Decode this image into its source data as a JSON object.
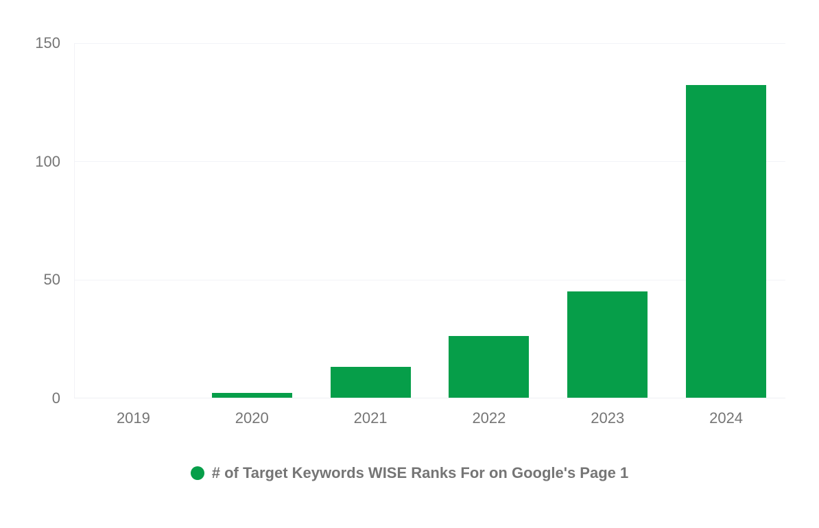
{
  "chart_data": {
    "type": "bar",
    "title": "",
    "categories": [
      "2019",
      "2020",
      "2021",
      "2022",
      "2023",
      "2024"
    ],
    "values": [
      0,
      2,
      13,
      26,
      45,
      132
    ],
    "series_label": "# of Target Keywords WISE Ranks For on Google's Page 1",
    "xlabel": "",
    "ylabel": "",
    "ylim": [
      0,
      150
    ],
    "yticks": [
      0,
      50,
      100,
      150
    ],
    "grid": true,
    "legend_position": "bottom",
    "colors": {
      "bar": "#069e49",
      "legend_marker": "#069e49",
      "gridline": "#f2f3f7",
      "tick_label": "#757575",
      "legend_text": "#757575",
      "background": "#ffffff"
    }
  }
}
